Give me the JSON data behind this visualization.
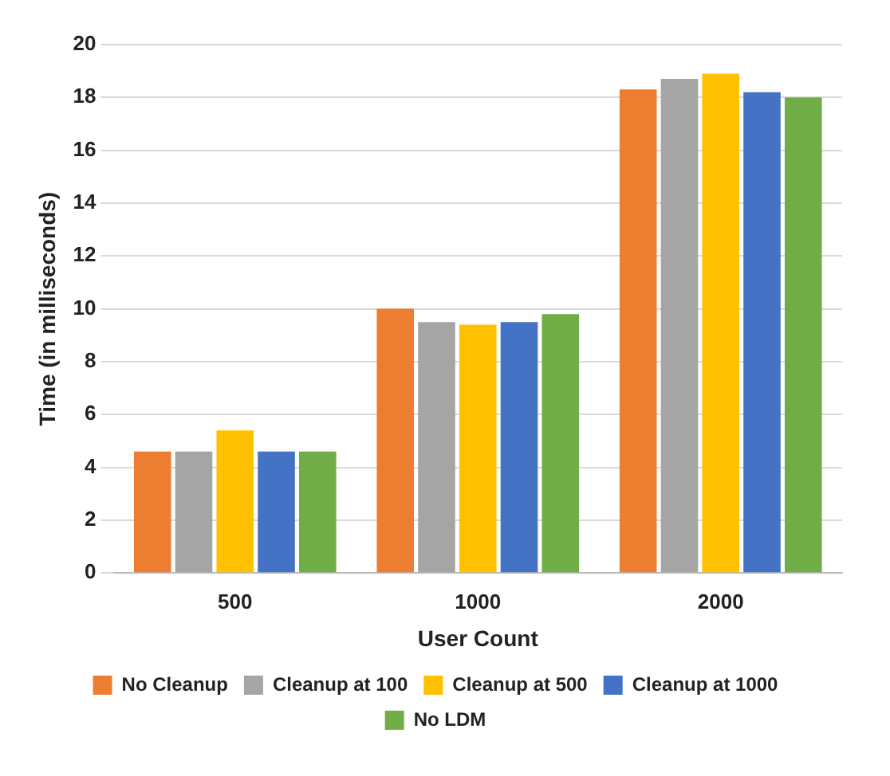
{
  "chart_data": {
    "type": "bar",
    "xlabel": "User Count",
    "ylabel": "Time (in milliseconds)",
    "categories": [
      "500",
      "1000",
      "2000"
    ],
    "series": [
      {
        "name": "No Cleanup",
        "color": "#ed7d31",
        "values": [
          4.6,
          10.0,
          18.3
        ]
      },
      {
        "name": "Cleanup at 100",
        "color": "#a5a5a5",
        "values": [
          4.6,
          9.5,
          18.7
        ]
      },
      {
        "name": "Cleanup at 500",
        "color": "#ffc000",
        "values": [
          5.4,
          9.4,
          18.9
        ]
      },
      {
        "name": "Cleanup at 1000",
        "color": "#4472c4",
        "values": [
          4.6,
          9.5,
          18.2
        ]
      },
      {
        "name": "No LDM",
        "color": "#70ad47",
        "values": [
          4.6,
          9.8,
          18.0
        ]
      }
    ],
    "ylim": [
      0,
      20
    ],
    "yticks": [
      0,
      2,
      4,
      6,
      8,
      10,
      12,
      14,
      16,
      18,
      20
    ],
    "grid": "y",
    "legend": "bottom"
  }
}
